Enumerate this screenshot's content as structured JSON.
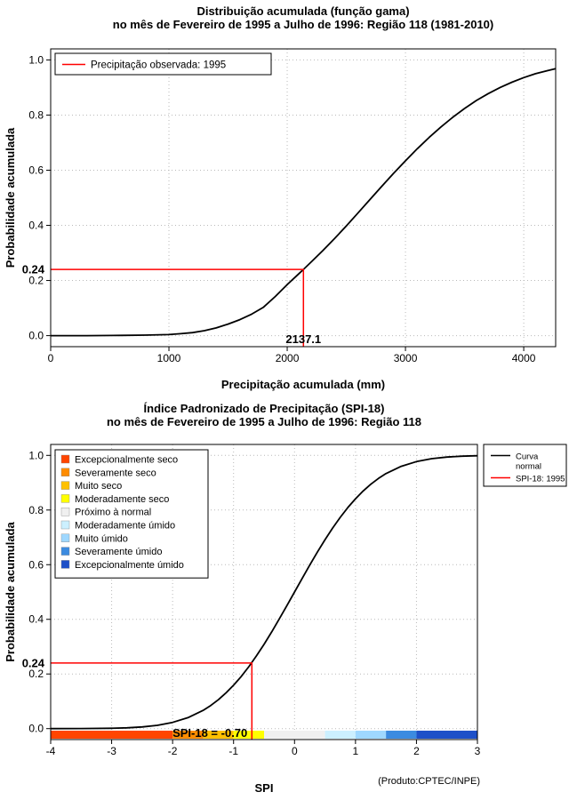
{
  "chart_data": [
    {
      "type": "line",
      "name": "gamma-cumulative-distribution",
      "title": "Distribuição acumulada (função gama)",
      "subtitle": "no mês de Fevereiro de 1995 a Julho de 1996: Região 118 (1981-2010)",
      "xlabel": "Precipitação acumulada (mm)",
      "ylabel": "Probabilidade acumulada",
      "xlim": [
        0,
        4270
      ],
      "ylim": [
        0,
        1
      ],
      "grid": true,
      "xtick_values": [
        0,
        1000,
        2000,
        3000,
        4000
      ],
      "xtick_labels": [
        "0",
        "1000",
        "2000",
        "3000",
        "4000"
      ],
      "ytick_values": [
        0,
        0.2,
        0.4,
        0.6,
        0.8,
        1.0
      ],
      "ytick_labels": [
        "0.0",
        "0.2",
        "0.4",
        "0.6",
        "0.8",
        "1.0"
      ],
      "curve_color": "#000000",
      "curve": {
        "x": [
          0,
          300,
          600,
          800,
          1000,
          1100,
          1200,
          1300,
          1400,
          1500,
          1600,
          1700,
          1800,
          1900,
          2000,
          2100,
          2137.1,
          2200,
          2300,
          2400,
          2500,
          2600,
          2700,
          2800,
          2900,
          3000,
          3100,
          3200,
          3300,
          3400,
          3500,
          3600,
          3700,
          3800,
          3900,
          4000,
          4100,
          4200,
          4270
        ],
        "y": [
          0,
          0,
          0.001,
          0.002,
          0.004,
          0.007,
          0.011,
          0.018,
          0.028,
          0.042,
          0.058,
          0.078,
          0.103,
          0.142,
          0.185,
          0.225,
          0.24,
          0.266,
          0.308,
          0.352,
          0.398,
          0.446,
          0.494,
          0.542,
          0.589,
          0.634,
          0.678,
          0.719,
          0.757,
          0.792,
          0.824,
          0.853,
          0.878,
          0.9,
          0.919,
          0.936,
          0.95,
          0.961,
          0.968
        ]
      },
      "marker": {
        "x": 2137.1,
        "y": 0.24,
        "color": "#ff0000",
        "y_axis_label": "0.24",
        "x_value_label": "2137.1",
        "label_mode": "below-line",
        "label_size": "13"
      },
      "legend": {
        "position": "top-left",
        "entries": [
          {
            "color": "#ff0000",
            "label_lines": [
              "Precipitação observada: 1995"
            ]
          }
        ]
      }
    },
    {
      "type": "line",
      "name": "spi-18-cumulative-distribution",
      "title": "Índice Padronizado de Precipitação (SPI-18)",
      "subtitle": "no mês de Fevereiro de 1995 a Julho de 1996: Região 118",
      "xlabel": "SPI",
      "ylabel": "Probabilidade acumulada",
      "xlim": [
        -4,
        3
      ],
      "ylim": [
        0,
        1
      ],
      "grid": true,
      "xtick_values": [
        -4,
        -3,
        -2,
        -1,
        0,
        1,
        2,
        3
      ],
      "xtick_labels": [
        "-4",
        "-3",
        "-2",
        "-1",
        "0",
        "1",
        "2",
        "3"
      ],
      "ytick_values": [
        0,
        0.2,
        0.4,
        0.6,
        0.8,
        1.0
      ],
      "ytick_labels": [
        "0.0",
        "0.2",
        "0.4",
        "0.6",
        "0.8",
        "1.0"
      ],
      "curve_color": "#000000",
      "curve": {
        "x": [
          -4,
          -3.5,
          -3,
          -2.75,
          -2.5,
          -2.25,
          -2,
          -1.75,
          -1.5,
          -1.375,
          -1.25,
          -1.125,
          -1,
          -0.875,
          -0.75,
          -0.625,
          -0.5,
          -0.375,
          -0.25,
          -0.125,
          0,
          0.125,
          0.25,
          0.375,
          0.5,
          0.625,
          0.75,
          0.875,
          1,
          1.125,
          1.25,
          1.375,
          1.5,
          1.75,
          2,
          2.25,
          2.5,
          2.75,
          3
        ],
        "y": [
          0,
          0.0002,
          0.0013,
          0.003,
          0.0062,
          0.0122,
          0.0228,
          0.0401,
          0.0668,
          0.0846,
          0.1056,
          0.1303,
          0.1587,
          0.1908,
          0.2266,
          0.266,
          0.3085,
          0.3538,
          0.4013,
          0.4503,
          0.5,
          0.5497,
          0.5987,
          0.6462,
          0.6915,
          0.734,
          0.7734,
          0.8092,
          0.8413,
          0.8697,
          0.8944,
          0.9154,
          0.9332,
          0.9599,
          0.9772,
          0.9878,
          0.9938,
          0.997,
          0.9987
        ]
      },
      "marker": {
        "x": -0.7,
        "y": 0.24,
        "color": "#ff0000",
        "y_axis_label": "0.24",
        "x_value_label": "SPI-18 = -0.70",
        "label_mode": "left-of-line",
        "label_size": "11.5"
      },
      "legend": {
        "position": "top-right-outside",
        "entries": [
          {
            "color": "#000000",
            "label_lines": [
              "Curva",
              "normal"
            ]
          },
          {
            "color": "#ff0000",
            "label_lines": [
              "SPI-18: 1995"
            ]
          }
        ]
      },
      "category_legend": {
        "entries": [
          {
            "label": "Excepcionalmente seco",
            "color": "#ff4500"
          },
          {
            "label": "Severamente seco",
            "color": "#ff8c00"
          },
          {
            "label": "Muito seco",
            "color": "#ffc100"
          },
          {
            "label": "Moderadamente seco",
            "color": "#ffff00"
          },
          {
            "label": "Próximo à normal",
            "color": "#f0f0f0"
          },
          {
            "label": "Moderadamente úmido",
            "color": "#ccf0ff"
          },
          {
            "label": "Muito úmido",
            "color": "#9fd8ff"
          },
          {
            "label": "Severamente úmido",
            "color": "#3c8be0"
          },
          {
            "label": "Excepcionalmente úmido",
            "color": "#1e50c8"
          }
        ]
      },
      "colorbar": {
        "boundaries": [
          -4,
          -2,
          -1.5,
          -1,
          -0.5,
          0.5,
          1,
          1.5,
          2,
          3
        ],
        "colors": [
          "#ff4500",
          "#ff8c00",
          "#ffc100",
          "#ffff00",
          "#f0f0f0",
          "#ccf0ff",
          "#9fd8ff",
          "#3c8be0",
          "#1e50c8"
        ]
      },
      "footer": "(Produto:CPTEC/INPE)"
    }
  ]
}
